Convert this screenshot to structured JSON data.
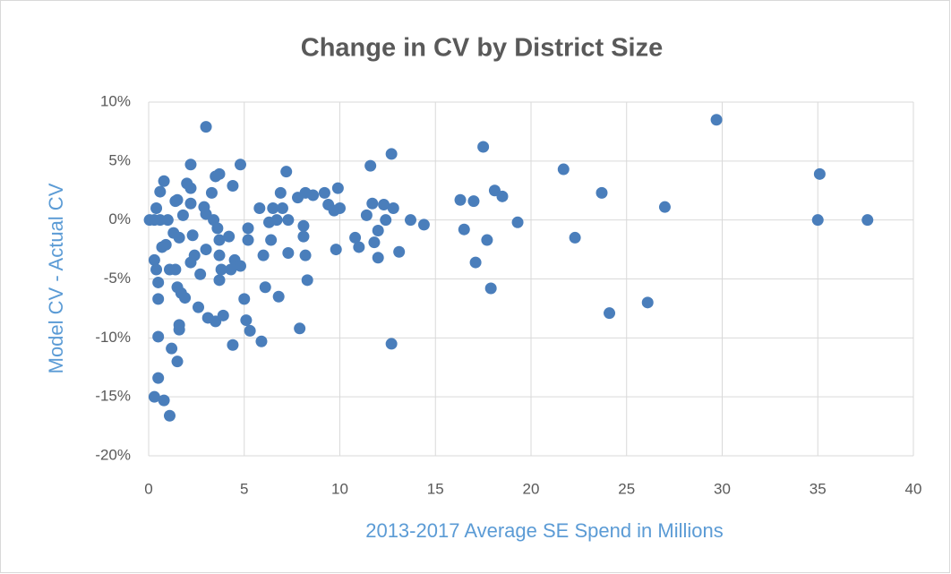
{
  "chart_data": {
    "type": "scatter",
    "title": "Change in CV by District Size",
    "x_label": "2013-2017 Average SE Spend in Millions",
    "y_label": "Model CV - Actual CV",
    "color": "#4a7ebb",
    "grid": true,
    "xlim": [
      0,
      40
    ],
    "xticks": [
      0,
      5,
      10,
      15,
      20,
      25,
      30,
      35,
      40
    ],
    "ylim": [
      -20,
      10
    ],
    "yticks": [
      {
        "value": -20,
        "label": "-20%"
      },
      {
        "value": -15,
        "label": "-15%"
      },
      {
        "value": -10,
        "label": "-10%"
      },
      {
        "value": -5,
        "label": "-5%"
      },
      {
        "value": 0,
        "label": "0%"
      },
      {
        "value": 5,
        "label": "5%"
      },
      {
        "value": 10,
        "label": "10%"
      }
    ],
    "x": [
      0.05,
      0.3,
      0.4,
      0.6,
      0.3,
      0.4,
      0.5,
      0.5,
      0.5,
      0.5,
      0.3,
      0.8,
      1.1,
      0.6,
      0.8,
      1.0,
      0.7,
      0.9,
      1.1,
      1.2,
      1.5,
      1.3,
      1.4,
      1.5,
      1.6,
      1.4,
      1.5,
      1.6,
      1.6,
      1.7,
      1.9,
      1.8,
      2.0,
      2.2,
      2.2,
      2.2,
      2.3,
      2.2,
      2.4,
      2.6,
      2.7,
      3.0,
      2.9,
      3.0,
      3.1,
      3.0,
      3.3,
      3.5,
      3.7,
      3.4,
      3.6,
      3.7,
      3.7,
      3.8,
      3.7,
      3.5,
      3.9,
      4.2,
      4.4,
      4.3,
      4.4,
      4.5,
      4.8,
      4.8,
      5.0,
      5.2,
      5.1,
      5.3,
      5.2,
      5.8,
      5.9,
      6.0,
      6.1,
      6.3,
      6.4,
      6.5,
      6.7,
      6.8,
      6.9,
      7.0,
      7.2,
      7.3,
      7.3,
      7.9,
      7.8,
      8.1,
      8.1,
      8.2,
      8.3,
      8.2,
      8.6,
      9.2,
      9.4,
      9.7,
      9.9,
      10.0,
      9.8,
      10.8,
      11.0,
      11.4,
      11.6,
      11.7,
      11.8,
      12.0,
      12.0,
      12.3,
      12.4,
      12.7,
      12.8,
      12.7,
      13.1,
      13.7,
      14.4,
      16.3,
      16.5,
      17.0,
      17.1,
      17.5,
      17.7,
      17.9,
      18.1,
      18.5,
      19.3,
      21.7,
      22.3,
      23.7,
      24.1,
      26.1,
      27.0,
      29.7,
      35.0,
      35.1,
      37.6
    ],
    "values": [
      0,
      0,
      1.0,
      0,
      -3.4,
      -4.2,
      -5.3,
      -6.7,
      -9.9,
      -13.4,
      -15,
      -15.3,
      -16.6,
      2.4,
      3.3,
      0,
      -2.3,
      -2.1,
      -4.2,
      -10.9,
      -12,
      -1.1,
      1.6,
      1.7,
      -1.5,
      -4.2,
      -5.7,
      -8.9,
      -9.3,
      -6.2,
      -6.6,
      0.4,
      3.1,
      4.7,
      2.7,
      1.4,
      -1.3,
      -3.6,
      -3.0,
      -7.4,
      -4.6,
      7.9,
      1.1,
      0.5,
      -8.3,
      -2.5,
      2.3,
      3.7,
      3.9,
      0,
      -0.7,
      -1.7,
      -3.0,
      -4.2,
      -5.1,
      -8.6,
      -8.1,
      -1.4,
      2.9,
      -4.2,
      -10.6,
      -3.4,
      4.7,
      -3.9,
      -6.7,
      -0.7,
      -8.5,
      -9.4,
      -1.7,
      1.0,
      -10.3,
      -3.0,
      -5.7,
      -0.2,
      -1.7,
      1.0,
      0,
      -6.5,
      2.3,
      1.0,
      4.1,
      -2.8,
      0,
      -9.2,
      1.9,
      -0.5,
      -1.4,
      -3.0,
      -5.1,
      2.3,
      2.1,
      2.3,
      1.3,
      0.8,
      2.7,
      1.0,
      -2.5,
      -1.5,
      -2.3,
      0.4,
      4.6,
      1.4,
      -1.9,
      -0.9,
      -3.2,
      1.3,
      0,
      5.6,
      1.0,
      -10.5,
      -2.7,
      0,
      -0.4,
      1.7,
      -0.8,
      1.6,
      -3.6,
      6.2,
      -1.7,
      -5.8,
      2.5,
      2.0,
      -0.2,
      4.3,
      -1.5,
      2.3,
      -7.9,
      -7.0,
      1.1,
      8.5,
      0,
      3.9,
      0
    ]
  }
}
